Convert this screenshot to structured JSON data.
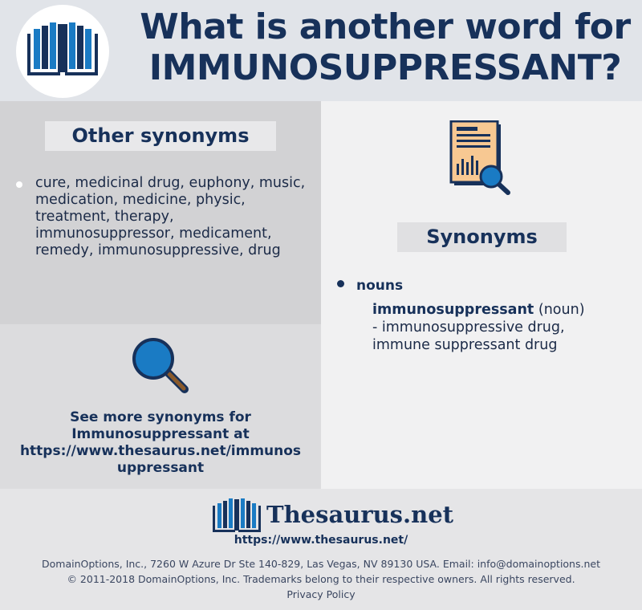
{
  "header": {
    "title_line1": "What is another word for",
    "title_line2": "IMMUNOSUPPRESSANT?",
    "logo_icon": "book-icon"
  },
  "other_synonyms": {
    "heading": "Other synonyms",
    "text": "cure, medicinal drug, euphony, music, medication, medicine, physic, treatment, therapy, immunosuppressor, medicament, remedy, immunosuppressive, drug"
  },
  "see_more": {
    "icon": "magnifier-icon",
    "line1": "See more synonyms for",
    "line2": "Immunosuppressant at",
    "line3": "https://www.thesaurus.net/immunos",
    "line4": "uppressant"
  },
  "synonyms": {
    "icon": "document-search-icon",
    "heading": "Synonyms",
    "pos": "nouns",
    "entry_word": "immunosuppressant",
    "entry_pos": "(noun)",
    "entry_line1": "-  immunosuppressive drug,",
    "entry_line2": "immune suppressant drug"
  },
  "footer": {
    "brand": "Thesaurus.net",
    "url": "https://www.thesaurus.net/",
    "address": "DomainOptions, Inc., 7260 W Azure Dr Ste 140-829, Las Vegas, NV 89130 USA. Email: info@domainoptions.net",
    "copyright": "© 2011-2018 DomainOptions, Inc. Trademarks belong to their respective owners. All rights reserved.",
    "privacy": "Privacy Policy"
  },
  "colors": {
    "navy": "#17315a",
    "blue": "#1a7bc4",
    "header_bg": "#e1e4e9"
  }
}
